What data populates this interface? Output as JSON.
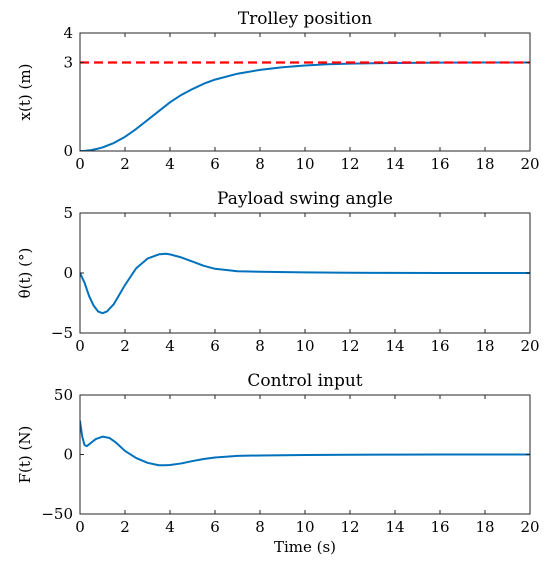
{
  "chart_data": [
    {
      "type": "line",
      "title": "Trolley position",
      "ylabel": "x(t) (m)",
      "xlabel": "",
      "xlim": [
        0,
        20
      ],
      "ylim": [
        0,
        4
      ],
      "xticks": [
        "0",
        "2",
        "4",
        "6",
        "8",
        "10",
        "12",
        "14",
        "16",
        "18",
        "20"
      ],
      "yticks": [
        "0",
        "3",
        "4"
      ],
      "ytick_values": [
        0,
        3,
        4
      ],
      "grid": false,
      "series": [
        {
          "color": "#0072BD",
          "style": "solid",
          "x": [
            0,
            0.2,
            0.5,
            0.8,
            1.0,
            1.5,
            2.0,
            2.5,
            3.0,
            3.5,
            4.0,
            4.5,
            5.0,
            5.5,
            6.0,
            7.0,
            8.0,
            9.0,
            10.0,
            11.0,
            12.0,
            13.0,
            14.0,
            16.0,
            18.0,
            20.0
          ],
          "y": [
            0,
            0.005,
            0.03,
            0.08,
            0.12,
            0.27,
            0.48,
            0.75,
            1.05,
            1.35,
            1.65,
            1.9,
            2.1,
            2.28,
            2.42,
            2.62,
            2.75,
            2.84,
            2.9,
            2.94,
            2.96,
            2.975,
            2.985,
            2.995,
            3.0,
            3.0
          ]
        },
        {
          "color": "#FF0000",
          "style": "dashed",
          "x": [
            0,
            20
          ],
          "y": [
            3,
            3
          ]
        }
      ]
    },
    {
      "type": "line",
      "title": "Payload swing angle",
      "ylabel": "θ(t) (°)",
      "xlabel": "",
      "xlim": [
        0,
        20
      ],
      "ylim": [
        -5,
        5
      ],
      "xticks": [
        "0",
        "2",
        "4",
        "6",
        "8",
        "10",
        "12",
        "14",
        "16",
        "18",
        "20"
      ],
      "yticks": [
        "−5",
        "0",
        "5"
      ],
      "ytick_values": [
        -5,
        0,
        5
      ],
      "grid": false,
      "series": [
        {
          "color": "#0072BD",
          "style": "solid",
          "x": [
            0,
            0.2,
            0.4,
            0.6,
            0.8,
            1.0,
            1.2,
            1.5,
            2.0,
            2.5,
            3.0,
            3.5,
            3.8,
            4.0,
            4.5,
            5.0,
            5.5,
            6.0,
            7.0,
            8.0,
            10.0,
            12.0,
            14.0,
            16.0,
            18.0,
            20.0
          ],
          "y": [
            0,
            -0.8,
            -1.9,
            -2.7,
            -3.2,
            -3.35,
            -3.2,
            -2.6,
            -1.0,
            0.4,
            1.2,
            1.55,
            1.6,
            1.55,
            1.3,
            0.95,
            0.6,
            0.35,
            0.15,
            0.1,
            0.05,
            0.02,
            0.01,
            0.0,
            0.0,
            0.0
          ]
        }
      ]
    },
    {
      "type": "line",
      "title": "Control input",
      "ylabel": "F(t) (N)",
      "xlabel": "Time (s)",
      "xlim": [
        0,
        20
      ],
      "ylim": [
        -50,
        50
      ],
      "xticks": [
        "0",
        "2",
        "4",
        "6",
        "8",
        "10",
        "12",
        "14",
        "16",
        "18",
        "20"
      ],
      "yticks": [
        "−50",
        "0",
        "50"
      ],
      "ytick_values": [
        -50,
        0,
        50
      ],
      "grid": false,
      "series": [
        {
          "color": "#0072BD",
          "style": "solid",
          "x": [
            0,
            0.1,
            0.2,
            0.3,
            0.5,
            0.7,
            1.0,
            1.3,
            1.6,
            2.0,
            2.5,
            3.0,
            3.5,
            3.8,
            4.0,
            4.5,
            5.0,
            5.5,
            6.0,
            7.0,
            8.0,
            10.0,
            12.0,
            14.0,
            16.0,
            18.0,
            20.0
          ],
          "y": [
            28,
            15,
            8,
            7,
            10,
            13,
            15,
            14,
            10,
            3,
            -3,
            -7,
            -9,
            -9,
            -8.8,
            -7.5,
            -5.5,
            -3.8,
            -2.5,
            -1.2,
            -0.8,
            -0.4,
            -0.2,
            -0.1,
            0,
            0,
            0
          ]
        }
      ]
    }
  ]
}
